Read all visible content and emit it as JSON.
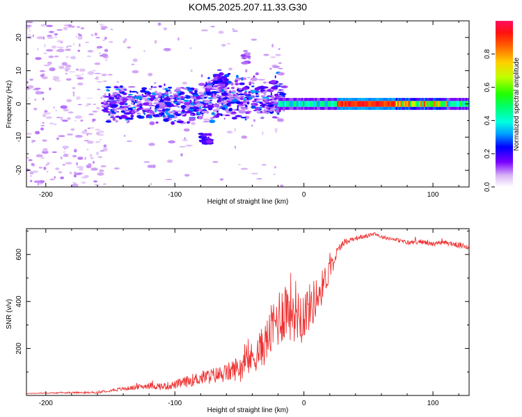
{
  "figure": {
    "title": "KOM5.2025.207.11.33.G30",
    "colors": {
      "snr_line": "#ee3333",
      "axes": "#000000"
    }
  },
  "chart_data": [
    {
      "type": "heatmap",
      "xlabel": "Height of straight line (km)",
      "ylabel": "Frequency (Hz)",
      "xlim": [
        -215,
        128
      ],
      "ylim": [
        -25,
        25
      ],
      "xticks": [
        -200,
        -100,
        0,
        100
      ],
      "yticks": [
        -20,
        -10,
        0,
        10,
        20
      ],
      "colorbar": {
        "label": "Normalized spectral amplitude",
        "range": [
          0,
          1
        ],
        "ticks": [
          "0.0",
          "0.2",
          "0.4",
          "0.6",
          "0.8"
        ],
        "ticks_values": [
          0,
          0.2,
          0.4,
          0.6,
          0.8
        ]
      },
      "features": [
        {
          "name": "steady tone",
          "x_range": [
            -20,
            128
          ],
          "frequency": 0,
          "amplitude": 1.0
        },
        {
          "name": "scattered echoes",
          "x_range": [
            -155,
            -15
          ],
          "frequency_range": [
            -13,
            15
          ],
          "amplitude": 0.35
        },
        {
          "name": "sparse noise",
          "x_range": [
            -215,
            -155
          ],
          "frequency_range": [
            -25,
            25
          ],
          "amplitude": 0.1
        }
      ]
    },
    {
      "type": "line",
      "xlabel": "Height of straight line (km)",
      "ylabel": "SNR (v/v)",
      "xlim": [
        -215,
        128
      ],
      "ylim": [
        0,
        710
      ],
      "xticks": [
        -200,
        -100,
        0,
        100
      ],
      "yticks": [
        200,
        400,
        600
      ],
      "series": [
        {
          "x": [
            -215,
            -200,
            -180,
            -160,
            -150,
            -140,
            -130,
            -120,
            -110,
            -100,
            -90,
            -80,
            -70,
            -60,
            -50,
            -40,
            -30,
            -25,
            -20,
            -15,
            -10,
            -5,
            0,
            5,
            10,
            15,
            20,
            25,
            30,
            40,
            50,
            55,
            60,
            70,
            80,
            90,
            100,
            110,
            120,
            128
          ],
          "y": [
            8,
            10,
            12,
            12,
            22,
            28,
            35,
            42,
            38,
            45,
            60,
            75,
            85,
            95,
            120,
            160,
            220,
            280,
            330,
            370,
            380,
            360,
            350,
            380,
            420,
            470,
            540,
            600,
            650,
            670,
            680,
            690,
            675,
            665,
            650,
            655,
            645,
            650,
            640,
            630
          ],
          "noise": [
            1,
            2,
            3,
            4,
            6,
            8,
            10,
            14,
            16,
            18,
            25,
            30,
            35,
            40,
            55,
            70,
            90,
            110,
            130,
            140,
            150,
            130,
            110,
            100,
            90,
            70,
            50,
            30,
            15,
            10,
            8,
            8,
            8,
            8,
            10,
            10,
            10,
            10,
            12,
            12
          ]
        }
      ]
    }
  ]
}
